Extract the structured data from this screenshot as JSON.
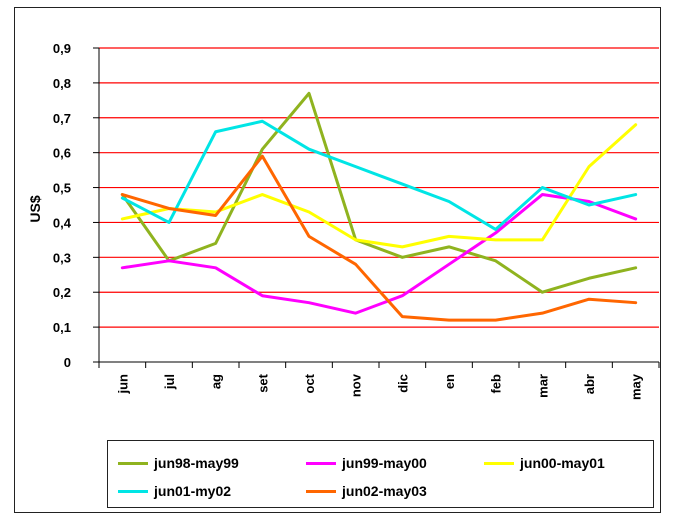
{
  "chart_data": {
    "type": "line",
    "title": "",
    "xlabel": "",
    "ylabel": "US$",
    "ylim": [
      0,
      0.9
    ],
    "yticks": [
      "0",
      "0,1",
      "0,2",
      "0,3",
      "0,4",
      "0,5",
      "0,6",
      "0,7",
      "0,8",
      "0,9"
    ],
    "grid": true,
    "grid_color": "#ff0000",
    "legend_position": "bottom",
    "categories": [
      "jun",
      "jul",
      "ag",
      "set",
      "oct",
      "nov",
      "dic",
      "en",
      "feb",
      "mar",
      "abr",
      "may"
    ],
    "series": [
      {
        "name": "jun98-may99",
        "color": "#8fb31f",
        "values": [
          0.48,
          0.29,
          0.34,
          0.61,
          0.77,
          0.35,
          0.3,
          0.33,
          0.29,
          0.2,
          0.24,
          0.27
        ]
      },
      {
        "name": "jun99-may00",
        "color": "#ff00ff",
        "values": [
          0.27,
          0.29,
          0.27,
          0.19,
          0.17,
          0.14,
          0.19,
          0.28,
          0.37,
          0.48,
          0.46,
          0.41
        ]
      },
      {
        "name": "jun00-may01",
        "color": "#ffff00",
        "values": [
          0.41,
          0.44,
          0.43,
          0.48,
          0.43,
          0.35,
          0.33,
          0.36,
          0.35,
          0.35,
          0.56,
          0.68
        ]
      },
      {
        "name": "jun01-my02",
        "color": "#00e5e5",
        "values": [
          0.47,
          0.4,
          0.66,
          0.69,
          0.61,
          0.56,
          0.51,
          0.46,
          0.38,
          0.5,
          0.45,
          0.48
        ]
      },
      {
        "name": "jun02-may03",
        "color": "#ff6600",
        "values": [
          0.48,
          0.44,
          0.42,
          0.59,
          0.36,
          0.28,
          0.13,
          0.12,
          0.12,
          0.14,
          0.18,
          0.17
        ]
      }
    ]
  }
}
